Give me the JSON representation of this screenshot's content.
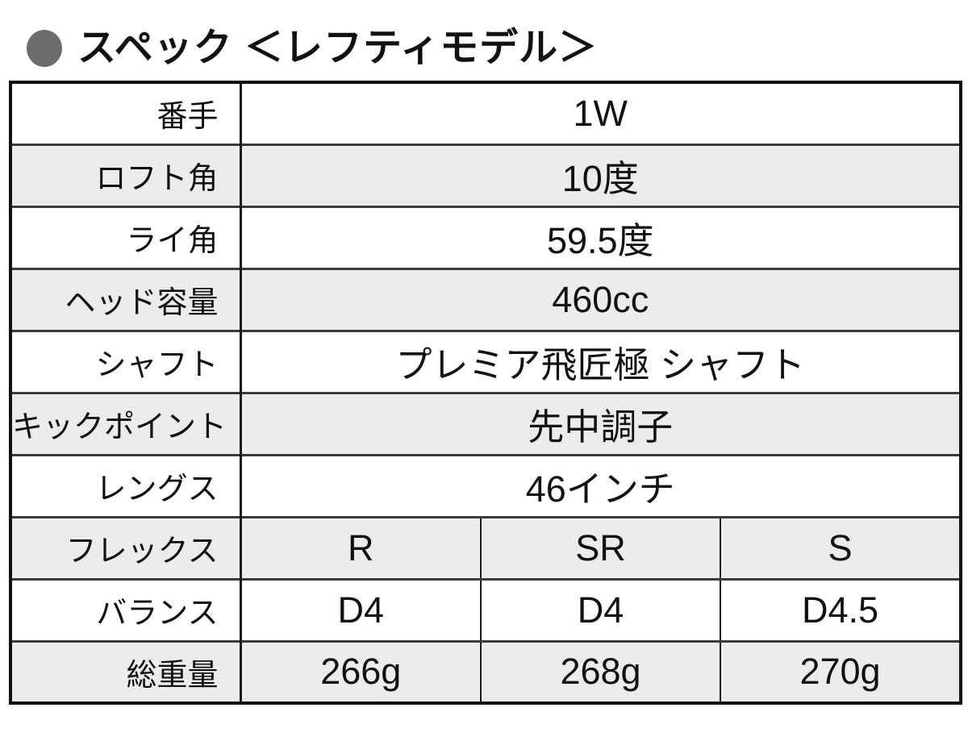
{
  "header": {
    "title": "スペック ＜レフティモデル＞"
  },
  "table": {
    "rows": [
      {
        "label": "番手",
        "values": [
          "1W"
        ],
        "shaded": false
      },
      {
        "label": "ロフト角",
        "values": [
          "10度"
        ],
        "shaded": true
      },
      {
        "label": "ライ角",
        "values": [
          "59.5度"
        ],
        "shaded": false
      },
      {
        "label": "ヘッド容量",
        "values": [
          "460cc"
        ],
        "shaded": true
      },
      {
        "label": "シャフト",
        "values": [
          "プレミア飛匠極 シャフト"
        ],
        "shaded": false
      },
      {
        "label": "キックポイント",
        "values": [
          "先中調子"
        ],
        "shaded": true
      },
      {
        "label": "レングス",
        "values": [
          "46インチ"
        ],
        "shaded": false
      },
      {
        "label": "フレックス",
        "values": [
          "R",
          "SR",
          "S"
        ],
        "shaded": true
      },
      {
        "label": "バランス",
        "values": [
          "D4",
          "D4",
          "D4.5"
        ],
        "shaded": false
      },
      {
        "label": "総重量",
        "values": [
          "266g",
          "268g",
          "270g"
        ],
        "shaded": true
      }
    ],
    "colors": {
      "shaded_row": "#ececec",
      "outer_border": "#111111",
      "row_divider": "#3b3b3b",
      "column_divider": "#1a1a1a",
      "text": "#111111",
      "bullet": "#6d6d6d"
    }
  }
}
